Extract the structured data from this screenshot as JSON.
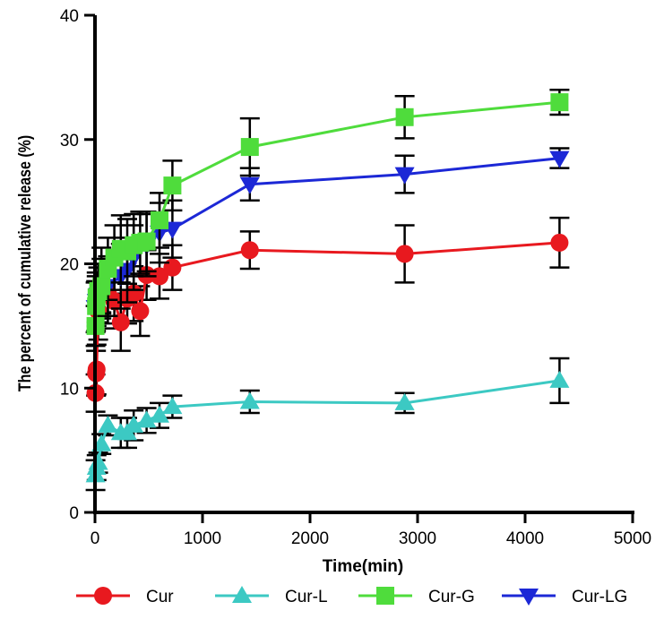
{
  "chart_data": {
    "type": "line",
    "title": "",
    "xlabel": "Time(min)",
    "ylabel": "The percent of cumulative release (%)",
    "xlim": [
      0,
      5000
    ],
    "ylim": [
      0,
      40
    ],
    "xticks": [
      0,
      1000,
      2000,
      3000,
      4000,
      5000
    ],
    "yticks": [
      0,
      10,
      20,
      30,
      40
    ],
    "xtick_labels": [
      "0",
      "1000",
      "2000",
      "3000",
      "4000",
      "5000"
    ],
    "ytick_labels": [
      "0",
      "10",
      "20",
      "30",
      "40"
    ],
    "grid": false,
    "legend_position": "bottom",
    "series": [
      {
        "name": "Cur",
        "color": "#e8191f",
        "marker": "circle",
        "x": [
          5,
          10,
          15,
          30,
          60,
          120,
          180,
          240,
          300,
          360,
          420,
          480,
          600,
          720,
          1440,
          2880,
          4320
        ],
        "y": [
          9.6,
          11.2,
          11.5,
          16.2,
          18.7,
          17.6,
          17.0,
          15.3,
          17.2,
          17.6,
          16.2,
          19.1,
          19.0,
          19.7,
          21.1,
          20.8,
          21.7
        ],
        "err": [
          1.5,
          1.8,
          2.0,
          2.3,
          2.6,
          2.4,
          2.2,
          2.3,
          2.0,
          2.2,
          2.0,
          2.0,
          1.8,
          1.8,
          1.5,
          2.3,
          2.0
        ]
      },
      {
        "name": "Cur-L",
        "color": "#3cc9c3",
        "marker": "triangle-up",
        "x": [
          5,
          15,
          30,
          60,
          120,
          240,
          300,
          360,
          480,
          600,
          720,
          1440,
          2880,
          4320
        ],
        "y": [
          3.0,
          3.6,
          4.0,
          5.5,
          7.0,
          6.4,
          6.4,
          7.0,
          7.4,
          7.8,
          8.5,
          8.9,
          8.8,
          10.6
        ],
        "err": [
          1.2,
          1.0,
          0.8,
          0.8,
          0.8,
          1.2,
          1.2,
          1.2,
          1.0,
          1.0,
          0.9,
          0.9,
          0.8,
          1.8
        ]
      },
      {
        "name": "Cur-G",
        "color": "#4fdc3c",
        "marker": "square",
        "x": [
          5,
          10,
          15,
          30,
          60,
          120,
          180,
          240,
          300,
          360,
          420,
          480,
          600,
          720,
          1440,
          2880,
          4320
        ],
        "y": [
          15.0,
          16.6,
          17.3,
          17.8,
          18.2,
          19.6,
          20.5,
          21.2,
          21.0,
          21.5,
          21.7,
          21.8,
          23.5,
          26.3,
          29.4,
          31.8,
          33.0
        ],
        "err": [
          1.6,
          2.0,
          2.0,
          2.2,
          2.2,
          2.5,
          2.6,
          2.7,
          2.6,
          2.5,
          2.5,
          2.4,
          2.2,
          2.0,
          2.3,
          1.7,
          1.0
        ]
      },
      {
        "name": "Cur-LG",
        "color": "#1c28d6",
        "marker": "triangle-down",
        "x": [
          5,
          15,
          30,
          60,
          120,
          240,
          300,
          360,
          480,
          600,
          720,
          1440,
          2880,
          4320
        ],
        "y": [
          16.5,
          17.0,
          17.5,
          17.8,
          18.2,
          19.0,
          19.5,
          20.5,
          21.5,
          22.5,
          22.8,
          26.4,
          27.2,
          28.5
        ],
        "err": [
          2.0,
          2.0,
          2.2,
          2.2,
          2.4,
          2.6,
          2.6,
          2.6,
          2.5,
          2.4,
          2.3,
          1.3,
          1.5,
          0.8
        ]
      }
    ]
  }
}
